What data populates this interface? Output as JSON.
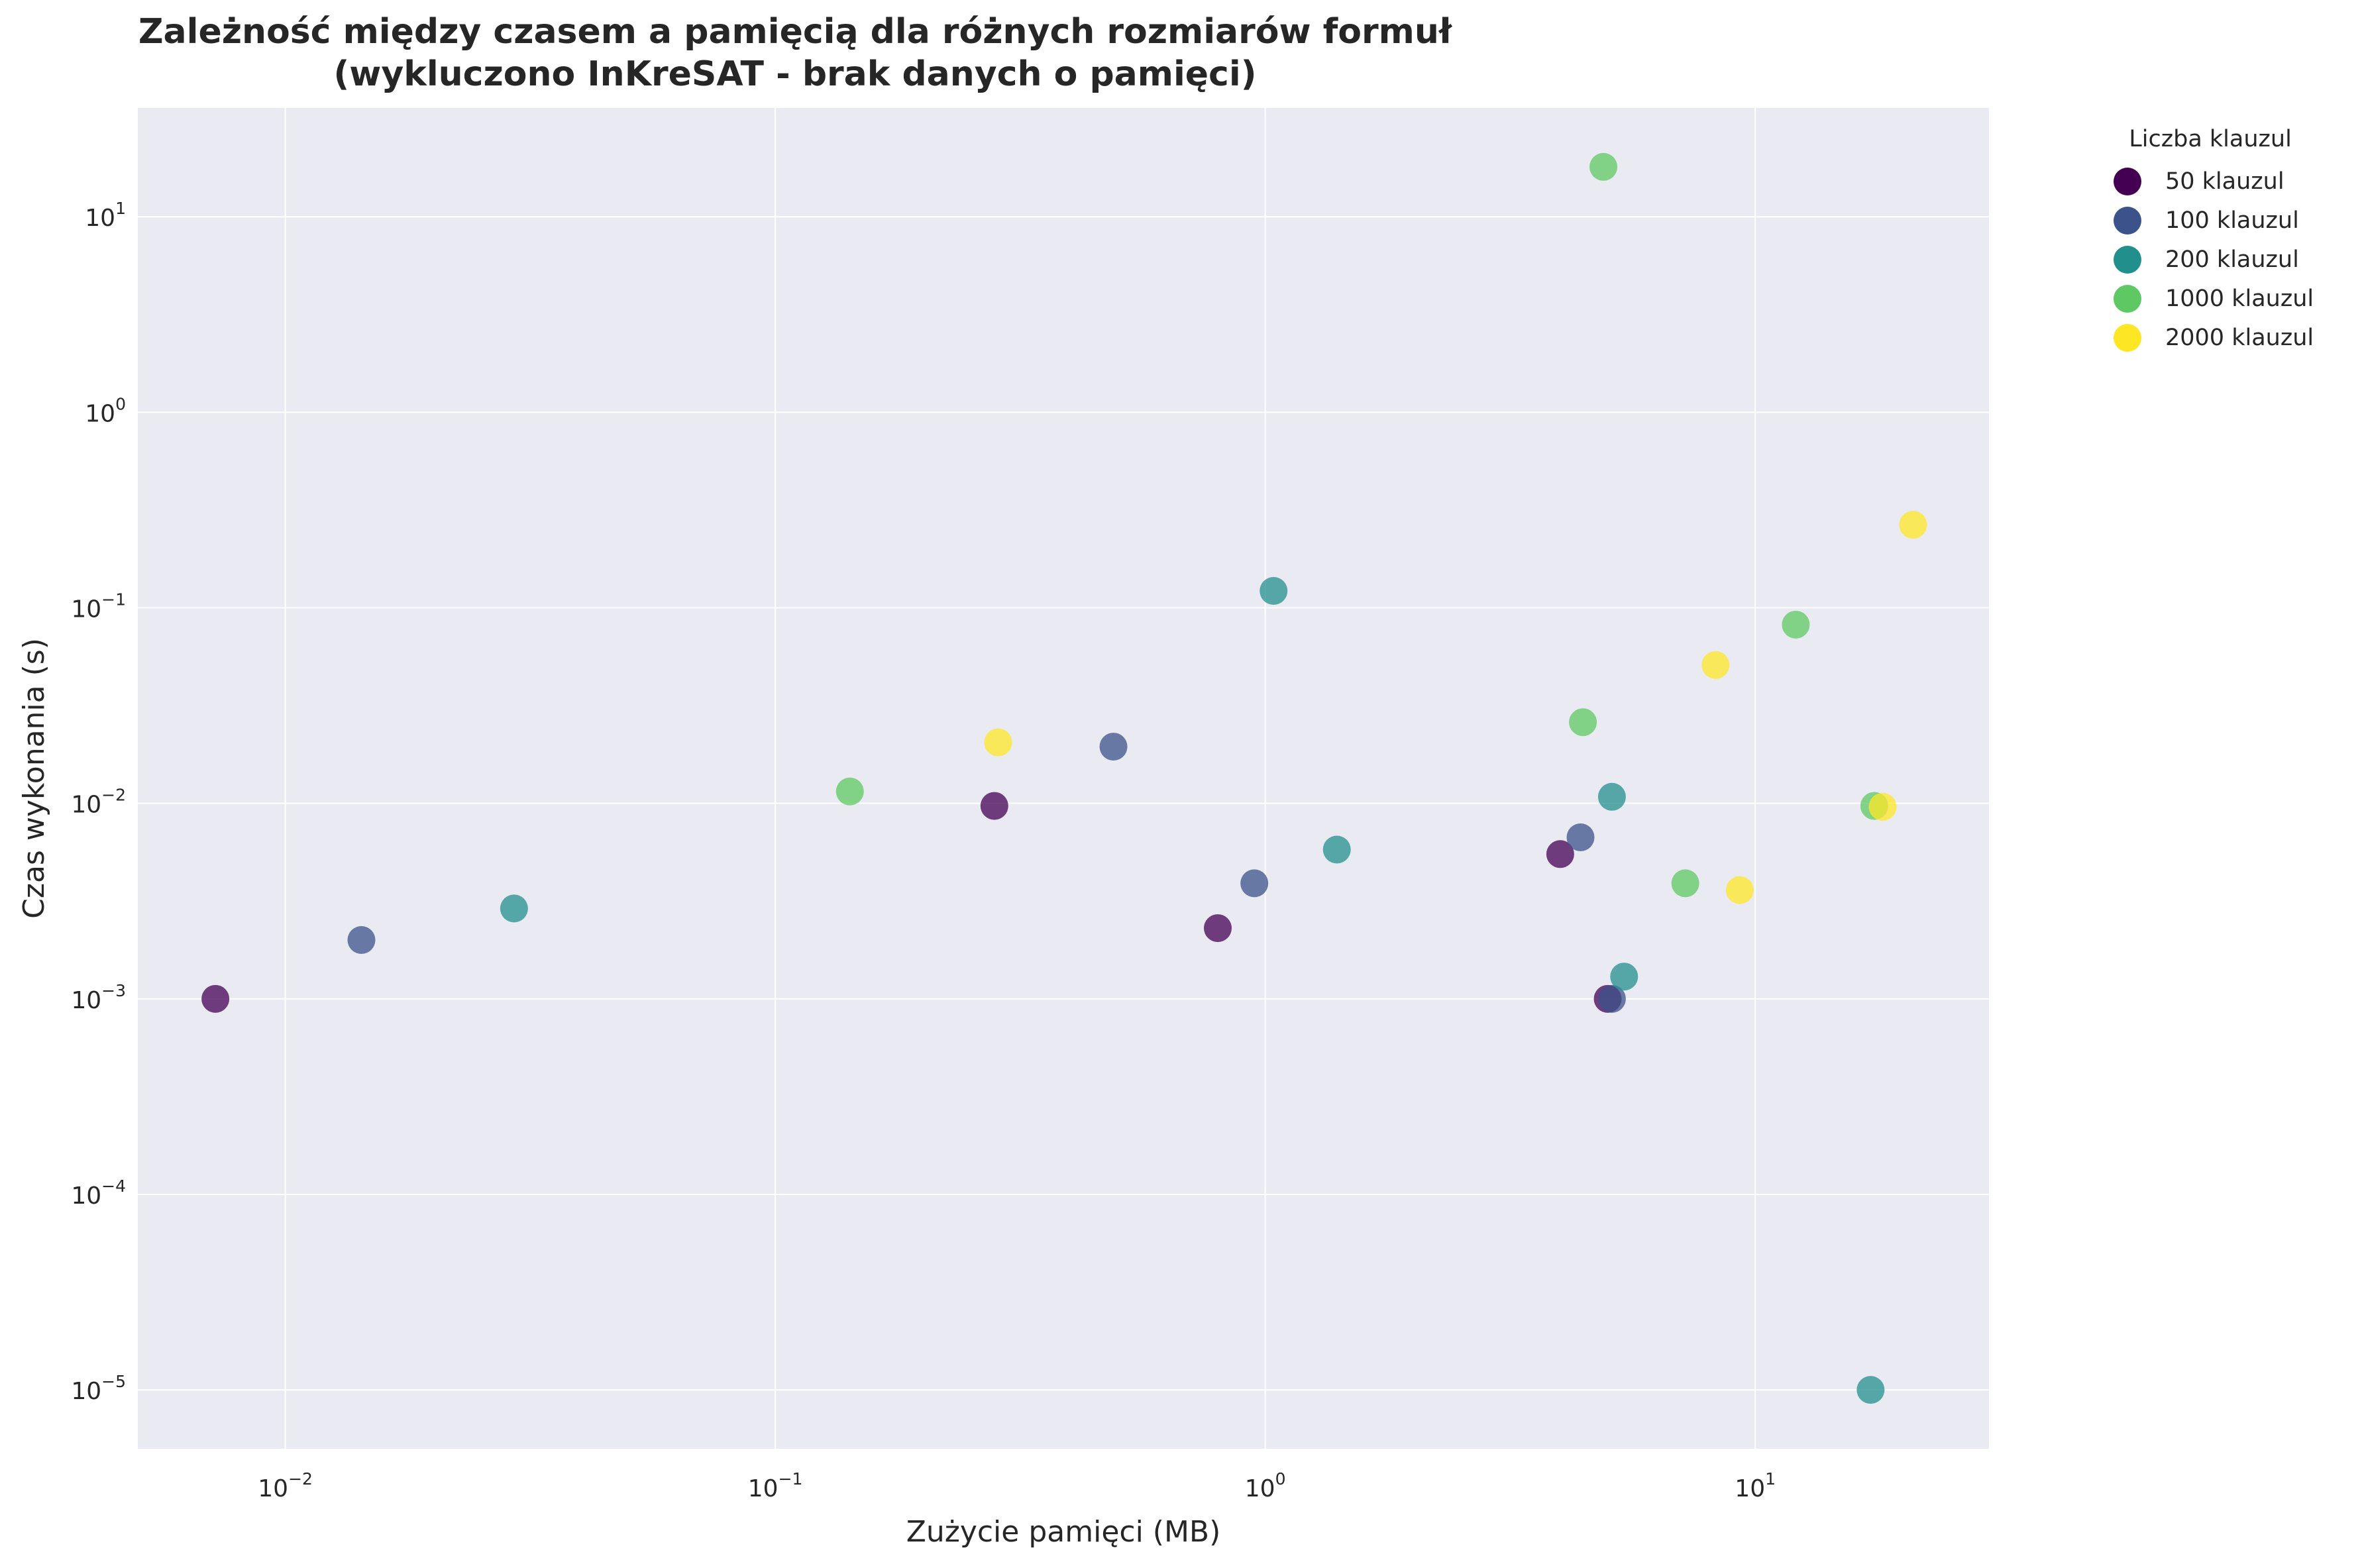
{
  "chart_data": {
    "type": "scatter",
    "title": "Zależność między czasem a pamięcią dla różnych rozmiarów formuł",
    "subtitle": "(wykluczono InKreSAT - brak danych o pamięci)",
    "xlabel": "Zużycie pamięci (MB)",
    "ylabel": "Czas wykonania (s)",
    "xscale": "log",
    "yscale": "log",
    "xlim": [
      0.005,
      30
    ],
    "ylim": [
      5e-06,
      36
    ],
    "xticks": [
      {
        "value": 0.01,
        "base": "10",
        "exp": "−2"
      },
      {
        "value": 0.1,
        "base": "10",
        "exp": "−1"
      },
      {
        "value": 1,
        "base": "10",
        "exp": "0"
      },
      {
        "value": 10,
        "base": "10",
        "exp": "1"
      }
    ],
    "yticks": [
      {
        "value": 1e-05,
        "base": "10",
        "exp": "−5"
      },
      {
        "value": 0.0001,
        "base": "10",
        "exp": "−4"
      },
      {
        "value": 0.001,
        "base": "10",
        "exp": "−3"
      },
      {
        "value": 0.01,
        "base": "10",
        "exp": "−2"
      },
      {
        "value": 0.1,
        "base": "10",
        "exp": "−1"
      },
      {
        "value": 1,
        "base": "10",
        "exp": "0"
      },
      {
        "value": 10,
        "base": "10",
        "exp": "1"
      }
    ],
    "grid": true,
    "legend_title": "Liczba klauzul",
    "legend_position": "outside-top-right",
    "series": [
      {
        "name": "50 klauzul",
        "color": "#440154",
        "points": [
          [
            0.0072,
            0.001
          ],
          [
            0.28,
            0.0097
          ],
          [
            0.8,
            0.0023
          ],
          [
            4.0,
            0.0055
          ],
          [
            5.0,
            0.001
          ]
        ]
      },
      {
        "name": "100 klauzul",
        "color": "#3b528b",
        "points": [
          [
            0.0143,
            0.002
          ],
          [
            0.49,
            0.0195
          ],
          [
            0.95,
            0.0039
          ],
          [
            4.4,
            0.0067
          ],
          [
            5.1,
            0.001
          ]
        ]
      },
      {
        "name": "200 klauzul",
        "color": "#21908c",
        "points": [
          [
            0.0293,
            0.0029
          ],
          [
            1.04,
            0.122
          ],
          [
            1.4,
            0.0058
          ],
          [
            5.1,
            0.0108
          ],
          [
            5.4,
            0.0013
          ],
          [
            17.2,
            1e-05
          ]
        ]
      },
      {
        "name": "1000 klauzul",
        "color": "#5ec962",
        "points": [
          [
            0.142,
            0.0115
          ],
          [
            4.9,
            18.0
          ],
          [
            4.45,
            0.026
          ],
          [
            7.2,
            0.0039
          ],
          [
            12.1,
            0.082
          ],
          [
            17.5,
            0.0097
          ]
        ]
      },
      {
        "name": "2000 klauzul",
        "color": "#fde725",
        "points": [
          [
            0.285,
            0.0205
          ],
          [
            8.3,
            0.051
          ],
          [
            9.3,
            0.0036
          ],
          [
            18.2,
            0.0096
          ],
          [
            21.0,
            0.266
          ]
        ]
      }
    ]
  }
}
